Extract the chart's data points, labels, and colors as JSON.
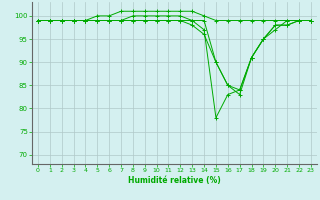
{
  "title": "",
  "xlabel": "Humidité relative (%)",
  "ylabel": "",
  "bg_color": "#d4f0f0",
  "grid_color": "#b0c8c8",
  "line_color": "#00aa00",
  "marker_color": "#00aa00",
  "xlim": [
    -0.5,
    23.5
  ],
  "ylim": [
    68,
    103
  ],
  "yticks": [
    70,
    75,
    80,
    85,
    90,
    95,
    100
  ],
  "xticks": [
    0,
    1,
    2,
    3,
    4,
    5,
    6,
    7,
    8,
    9,
    10,
    11,
    12,
    13,
    14,
    15,
    16,
    17,
    18,
    19,
    20,
    21,
    22,
    23
  ],
  "series": [
    [
      99,
      99,
      99,
      99,
      99,
      100,
      100,
      101,
      101,
      101,
      101,
      101,
      101,
      101,
      100,
      99,
      99,
      99,
      99,
      99,
      99,
      99,
      99,
      99
    ],
    [
      99,
      99,
      99,
      99,
      99,
      99,
      99,
      99,
      99,
      99,
      99,
      99,
      99,
      99,
      99,
      90,
      85,
      83,
      91,
      95,
      98,
      98,
      99,
      99
    ],
    [
      99,
      99,
      99,
      99,
      99,
      99,
      99,
      99,
      99,
      99,
      99,
      99,
      99,
      98,
      96,
      90,
      85,
      84,
      91,
      95,
      97,
      99,
      99,
      99
    ],
    [
      99,
      99,
      99,
      99,
      99,
      99,
      99,
      99,
      100,
      100,
      100,
      100,
      100,
      99,
      97,
      78,
      83,
      84,
      91,
      95,
      98,
      98,
      99,
      99
    ]
  ]
}
